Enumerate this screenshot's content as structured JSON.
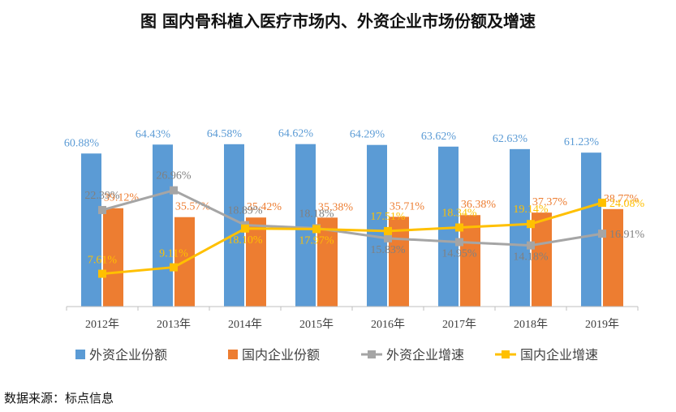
{
  "chart_data": {
    "type": "bar",
    "title": "图  国内骨科植入医疗市场内、外资企业市场份额及增速",
    "categories": [
      "2012年",
      "2013年",
      "2014年",
      "2015年",
      "2016年",
      "2017年",
      "2018年",
      "2019年"
    ],
    "series": [
      {
        "name": "外资企业份额",
        "kind": "bar",
        "color": "#5B9BD5",
        "label_color": "#5B9BD5",
        "values": [
          60.88,
          64.43,
          64.58,
          64.62,
          64.29,
          63.62,
          62.63,
          61.23
        ],
        "labels": [
          "60.88%",
          "64.43%",
          "64.58%",
          "64.62%",
          "64.29%",
          "63.62%",
          "62.63%",
          "61.23%"
        ]
      },
      {
        "name": "国内企业份额",
        "kind": "bar",
        "color": "#ED7D31",
        "label_color": "#ED7D31",
        "values": [
          39.12,
          35.57,
          35.42,
          35.38,
          35.71,
          36.38,
          37.37,
          38.77
        ],
        "labels": [
          "39.12%",
          "35.57%",
          "35.42%",
          "35.38%",
          "35.71%",
          "36.38%",
          "37.37%",
          "38.77%"
        ]
      },
      {
        "name": "外资企业增速",
        "kind": "line",
        "color": "#A5A5A5",
        "label_color": "#808080",
        "values": [
          22.39,
          26.96,
          18.89,
          18.18,
          15.83,
          14.95,
          14.18,
          16.91
        ],
        "labels": [
          "22.39%",
          "26.96%",
          "18.89%",
          "18.18%",
          "15.83%",
          "14.95%",
          "14.18%",
          "16.91%"
        ]
      },
      {
        "name": "国内企业增速",
        "kind": "line",
        "color": "#FFC000",
        "label_color": "#FFC000",
        "values": [
          7.61,
          9.11,
          18.1,
          17.97,
          17.51,
          18.34,
          19.14,
          24.08
        ],
        "labels": [
          "7.61%",
          "9.11%",
          "18.10%",
          "17.97%",
          "17.51%",
          "18.34%",
          "19.14%",
          "24.08%"
        ]
      }
    ],
    "bar_axis_range": [
      0,
      100
    ],
    "line_axis_range": [
      0,
      60
    ],
    "legend_position": "bottom",
    "grid": false
  },
  "source": "数据来源：标点信息"
}
